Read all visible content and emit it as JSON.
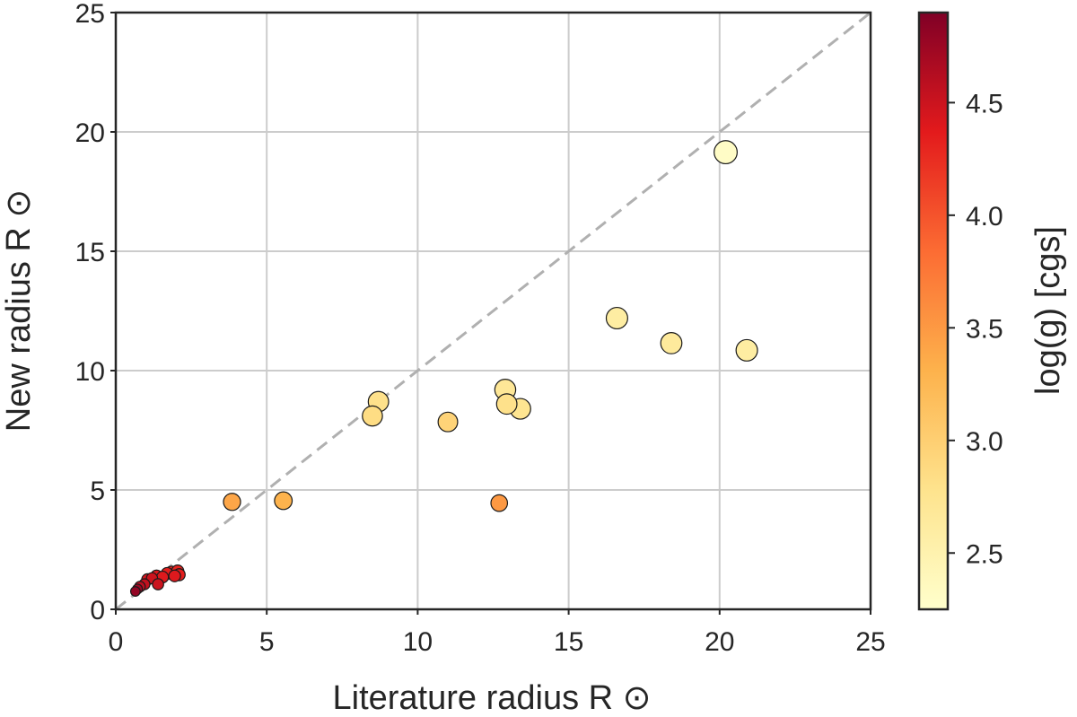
{
  "chart_data": {
    "type": "scatter",
    "xlabel": "Literature radius R ⊙",
    "ylabel": "New radius R ⊙",
    "xlim": [
      0,
      25
    ],
    "ylim": [
      0,
      25
    ],
    "xticks": [
      "0",
      "5",
      "10",
      "15",
      "20",
      "25"
    ],
    "yticks": [
      "0",
      "5",
      "10",
      "15",
      "20",
      "25"
    ],
    "grid": true,
    "reference_line": {
      "style": "dashed",
      "color": "#b0b0b0",
      "from": [
        0,
        0
      ],
      "to": [
        25,
        25
      ]
    },
    "colorbar": {
      "label": "log(g) [cgs]",
      "range": [
        2.25,
        4.9
      ],
      "ticks": [
        "2.5",
        "3.0",
        "3.5",
        "4.0",
        "4.5"
      ],
      "colormap": "YlOrRd"
    },
    "points": [
      {
        "x": 20.2,
        "y": 19.15,
        "logg": 2.3
      },
      {
        "x": 16.6,
        "y": 12.2,
        "logg": 2.6
      },
      {
        "x": 18.4,
        "y": 11.15,
        "logg": 2.65
      },
      {
        "x": 20.9,
        "y": 10.85,
        "logg": 2.6
      },
      {
        "x": 12.9,
        "y": 9.2,
        "logg": 2.7
      },
      {
        "x": 12.95,
        "y": 8.6,
        "logg": 2.8
      },
      {
        "x": 13.4,
        "y": 8.4,
        "logg": 2.75
      },
      {
        "x": 8.7,
        "y": 8.7,
        "logg": 2.8
      },
      {
        "x": 8.5,
        "y": 8.1,
        "logg": 2.85
      },
      {
        "x": 11.0,
        "y": 7.85,
        "logg": 2.95
      },
      {
        "x": 3.85,
        "y": 4.5,
        "logg": 3.4
      },
      {
        "x": 5.55,
        "y": 4.55,
        "logg": 3.3
      },
      {
        "x": 12.7,
        "y": 4.45,
        "logg": 3.5
      },
      {
        "x": 0.65,
        "y": 0.75,
        "logg": 4.8
      },
      {
        "x": 0.72,
        "y": 0.85,
        "logg": 4.75
      },
      {
        "x": 0.8,
        "y": 0.95,
        "logg": 4.6
      },
      {
        "x": 0.95,
        "y": 1.05,
        "logg": 4.55
      },
      {
        "x": 1.05,
        "y": 1.25,
        "logg": 4.45
      },
      {
        "x": 1.2,
        "y": 1.3,
        "logg": 4.5
      },
      {
        "x": 1.35,
        "y": 1.4,
        "logg": 4.4
      },
      {
        "x": 1.4,
        "y": 1.05,
        "logg": 4.5
      },
      {
        "x": 1.55,
        "y": 1.35,
        "logg": 4.4
      },
      {
        "x": 1.7,
        "y": 1.5,
        "logg": 4.35
      },
      {
        "x": 1.85,
        "y": 1.55,
        "logg": 4.3
      },
      {
        "x": 1.95,
        "y": 1.4,
        "logg": 4.4
      },
      {
        "x": 2.05,
        "y": 1.6,
        "logg": 4.3
      },
      {
        "x": 2.1,
        "y": 1.45,
        "logg": 4.35
      }
    ]
  }
}
